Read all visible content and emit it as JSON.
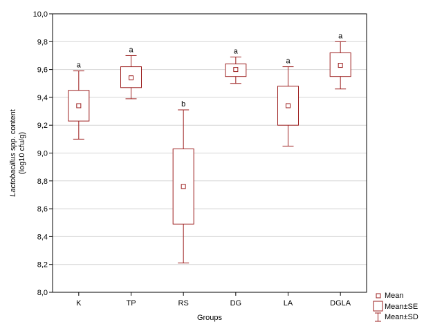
{
  "chart_data": {
    "type": "boxplot",
    "title": "",
    "xlabel": "Groups",
    "ylabel_italic": "Lactobacillus",
    "ylabel_rest": " spp. content",
    "ylabel_line2": "(log10 cfu/g)",
    "ylim": [
      8.0,
      10.0
    ],
    "yticks": [
      8.0,
      8.2,
      8.4,
      8.6,
      8.8,
      9.0,
      9.2,
      9.4,
      9.6,
      9.8,
      10.0
    ],
    "ytick_labels": [
      "8,0",
      "8,2",
      "8,4",
      "8,6",
      "8,8",
      "9,0",
      "9,2",
      "9,4",
      "9,6",
      "9,8",
      "10,0"
    ],
    "grid": "horizontal",
    "color": "#9b1c1c",
    "categories": [
      "K",
      "TP",
      "RS",
      "DG",
      "LA",
      "DGLA"
    ],
    "groups": [
      {
        "name": "K",
        "mean": 9.34,
        "se_low": 9.23,
        "se_high": 9.45,
        "sd_low": 9.1,
        "sd_high": 9.59,
        "sig": "a"
      },
      {
        "name": "TP",
        "mean": 9.54,
        "se_low": 9.47,
        "se_high": 9.62,
        "sd_low": 9.39,
        "sd_high": 9.7,
        "sig": "a"
      },
      {
        "name": "RS",
        "mean": 8.76,
        "se_low": 8.49,
        "se_high": 9.03,
        "sd_low": 8.21,
        "sd_high": 9.31,
        "sig": "b"
      },
      {
        "name": "DG",
        "mean": 9.6,
        "se_low": 9.55,
        "se_high": 9.64,
        "sd_low": 9.5,
        "sd_high": 9.69,
        "sig": "a"
      },
      {
        "name": "LA",
        "mean": 9.34,
        "se_low": 9.2,
        "se_high": 9.48,
        "sd_low": 9.05,
        "sd_high": 9.62,
        "sig": "a"
      },
      {
        "name": "DGLA",
        "mean": 9.63,
        "se_low": 9.55,
        "se_high": 9.72,
        "sd_low": 9.46,
        "sd_high": 9.8,
        "sig": "a"
      }
    ],
    "legend": {
      "position": "bottom-right",
      "items": [
        "Mean",
        "Mean±SE",
        "Mean±SD"
      ]
    }
  }
}
